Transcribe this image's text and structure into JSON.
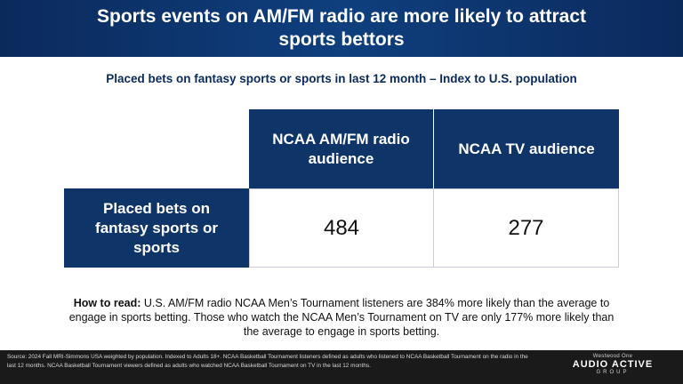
{
  "header": {
    "title": "Sports events on AM/FM radio are more likely to attract sports bettors"
  },
  "subtitle": "Placed bets on fantasy sports or sports in last 12 month – Index to U.S. population",
  "table": {
    "columns": [
      "NCAA AM/FM radio audience",
      "NCAA TV audience"
    ],
    "row_label": "Placed bets on fantasy sports or sports",
    "values": [
      "484",
      "277"
    ]
  },
  "how_to_read": {
    "label": "How to read:",
    "text": " U.S. AM/FM radio NCAA Men’s Tournament listeners are 384% more likely than the average to engage in sports betting. Those who watch the NCAA Men’s Tournament on TV are only 177% more likely than the average to engage in sports betting."
  },
  "footer": {
    "source": "Source: 2024 Fall MRI-Simmons USA weighted by population. Indexed to Adults 18+. NCAA Basketball Tournament listeners defined as adults who listened to NCAA Basketball Tournament on the radio in the last 12 months. NCAA Basketball Tournament viewers defined as adults who watched NCAA Basketball Tournament on TV in the last 12 months.",
    "logo_top": "Westwood One",
    "logo_main": "AUDIO ACTIVE",
    "logo_sub": "GROUP"
  },
  "colors": {
    "header_bg": "#0b2a5c",
    "cell_header_bg": "#0e3468",
    "footer_bg": "#1a1a1a"
  }
}
